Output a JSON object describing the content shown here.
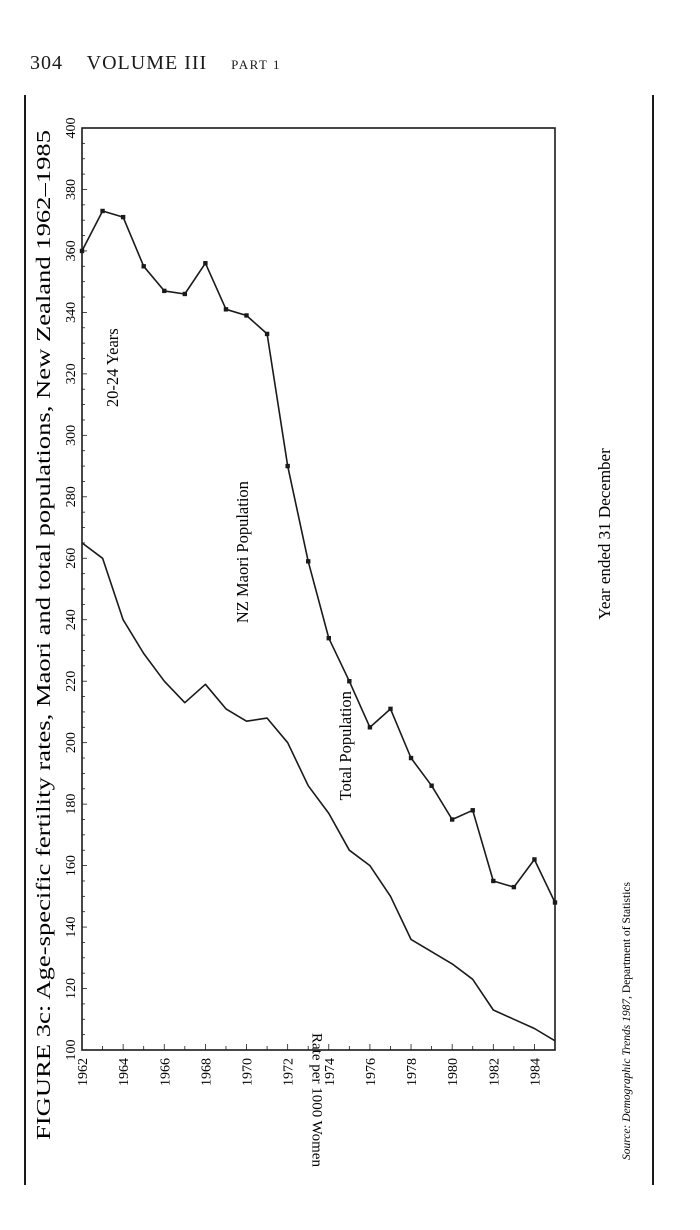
{
  "page_header": {
    "page_number": "304",
    "volume": "VOLUME III",
    "part": "PART 1"
  },
  "figure": {
    "caption": "FIGURE 3c: Age-specific fertility rates, Maori and total populations, New Zealand 1962–1985",
    "source_prefix": "Source: ",
    "source_title": "Demographic Trends 1987",
    "source_suffix": ", Department of Statistics"
  },
  "chart_data": {
    "type": "line",
    "orientation": "rotated-90-clockwise",
    "title": "",
    "annotation": "20-24 Years",
    "xlabel": "Year ended 31 December",
    "ylabel": "Rate per 1000 Women",
    "xlim": [
      1962,
      1985
    ],
    "ylim": [
      100,
      400
    ],
    "x_ticks": [
      "1962",
      "1964",
      "1966",
      "1968",
      "1970",
      "1972",
      "1974",
      "1976",
      "1978",
      "1980",
      "1982",
      "1984"
    ],
    "y_ticks": [
      "400",
      "380",
      "360",
      "340",
      "320",
      "300",
      "280",
      "260",
      "240",
      "220",
      "200",
      "180",
      "160",
      "140",
      "120",
      "100"
    ],
    "grid": false,
    "legend": "none",
    "series": [
      {
        "name": "NZ Maori Population",
        "markers": true,
        "color": "#1a1a1a",
        "points": [
          [
            1962,
            360
          ],
          [
            1963,
            373
          ],
          [
            1964,
            371
          ],
          [
            1965,
            355
          ],
          [
            1966,
            347
          ],
          [
            1967,
            346
          ],
          [
            1968,
            356
          ],
          [
            1969,
            341
          ],
          [
            1970,
            339
          ],
          [
            1971,
            333
          ],
          [
            1972,
            290
          ],
          [
            1973,
            259
          ],
          [
            1974,
            234
          ],
          [
            1975,
            220
          ],
          [
            1976,
            205
          ],
          [
            1977,
            211
          ],
          [
            1978,
            195
          ],
          [
            1979,
            186
          ],
          [
            1980,
            175
          ],
          [
            1981,
            178
          ],
          [
            1982,
            155
          ],
          [
            1983,
            153
          ],
          [
            1984,
            162
          ],
          [
            1985,
            148
          ]
        ]
      },
      {
        "name": "Total Population",
        "markers": false,
        "color": "#1a1a1a",
        "points": [
          [
            1962,
            265
          ],
          [
            1963,
            260
          ],
          [
            1964,
            240
          ],
          [
            1965,
            229
          ],
          [
            1966,
            220
          ],
          [
            1967,
            213
          ],
          [
            1968,
            219
          ],
          [
            1969,
            211
          ],
          [
            1970,
            207
          ],
          [
            1971,
            208
          ],
          [
            1972,
            200
          ],
          [
            1973,
            186
          ],
          [
            1974,
            177
          ],
          [
            1975,
            165
          ],
          [
            1976,
            160
          ],
          [
            1977,
            150
          ],
          [
            1978,
            136
          ],
          [
            1979,
            132
          ],
          [
            1980,
            128
          ],
          [
            1981,
            123
          ],
          [
            1982,
            113
          ],
          [
            1983,
            110
          ],
          [
            1984,
            107
          ],
          [
            1985,
            103
          ]
        ]
      }
    ]
  }
}
